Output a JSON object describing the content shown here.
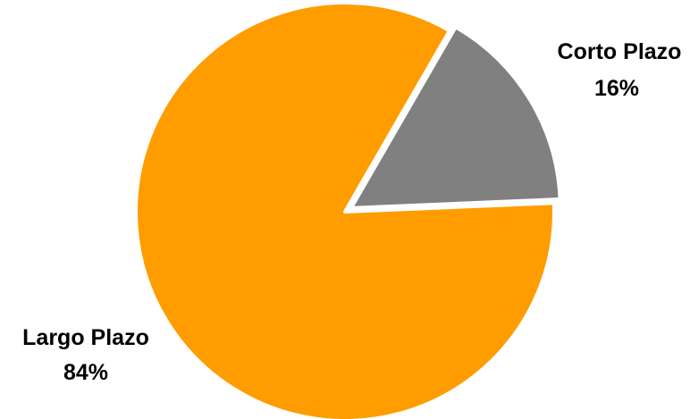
{
  "chart_data": {
    "type": "pie",
    "title": "",
    "slices": [
      {
        "label": "Corto Plazo",
        "value": 16,
        "value_label": "16%",
        "color": "#808080"
      },
      {
        "label": "Largo Plazo",
        "value": 84,
        "value_label": "84%",
        "color": "#FF9C00"
      }
    ],
    "start_angle_degrees_clockwise_from_east": -60,
    "legend": "none",
    "data_labels": "outside, category name above percentage"
  }
}
